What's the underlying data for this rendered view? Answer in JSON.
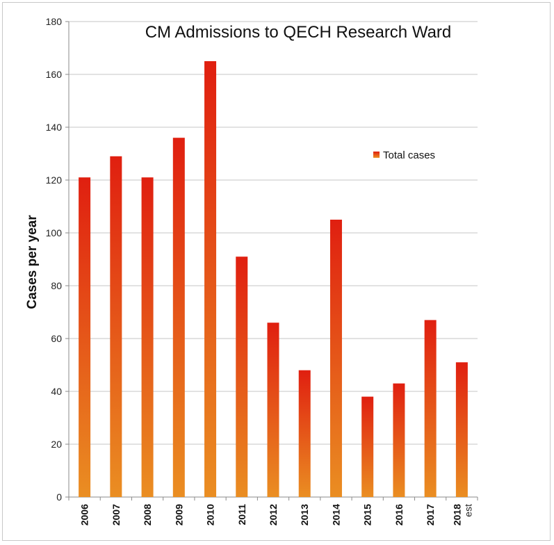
{
  "colors": {
    "bar_top": "#e01f10",
    "bar_bottom": "#ea8e22",
    "gridline": "#c6c6c6",
    "axis": "#8a8a8a"
  },
  "chart_data": {
    "type": "bar",
    "title": "CM Admissions to QECH Research Ward",
    "ylabel": "Cases per year",
    "xlabel": "",
    "categories": [
      "2006",
      "2007",
      "2008",
      "2009",
      "2010",
      "2011",
      "2012",
      "2013",
      "2014",
      "2015",
      "2016",
      "2017",
      "2018 est"
    ],
    "series": [
      {
        "name": "Total cases",
        "values": [
          121,
          129,
          121,
          136,
          165,
          91,
          66,
          48,
          105,
          38,
          43,
          67,
          51
        ]
      }
    ],
    "ylim": [
      0,
      180
    ],
    "yticks": [
      0,
      20,
      40,
      60,
      80,
      100,
      120,
      140,
      160,
      180
    ],
    "grid": true,
    "legend_position": "right"
  }
}
